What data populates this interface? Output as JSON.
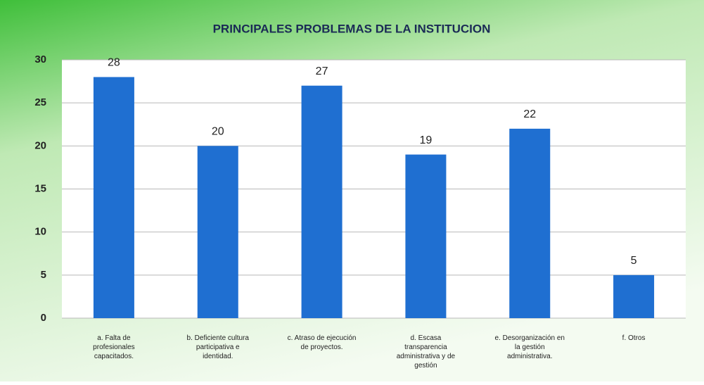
{
  "chart_data": {
    "type": "bar",
    "title": "PRINCIPALES PROBLEMAS DE LA INSTITUCION",
    "categories": [
      "a. Falta de profesionales capacitados.",
      "b. Deficiente cultura participativa e identidad.",
      "c. Atraso de ejecución de proyectos.",
      "d. Escasa transparencia administrativa y de gestión",
      "e. Desorganización en la gestión administrativa.",
      "f. Otros"
    ],
    "values": [
      28,
      20,
      27,
      19,
      22,
      5
    ],
    "color": "#1f6fd1",
    "ylim": [
      0,
      30
    ],
    "yticks": [
      0,
      5,
      10,
      15,
      20,
      25,
      30
    ],
    "grid": true
  }
}
